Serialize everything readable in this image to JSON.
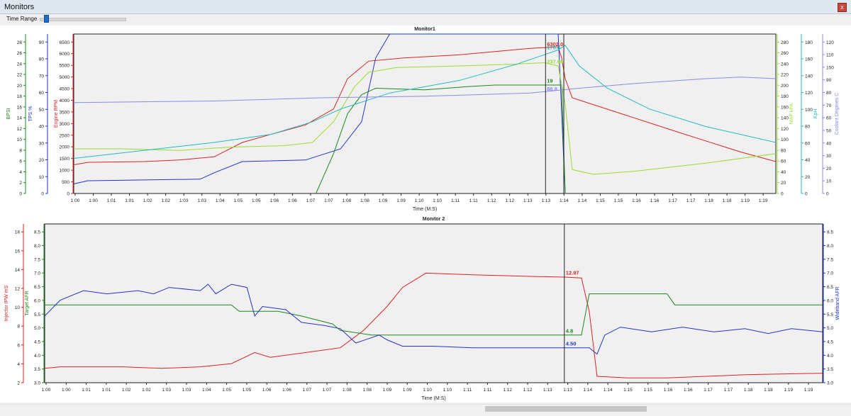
{
  "window": {
    "title": "Monitors",
    "close_label": "x"
  },
  "toolbar": {
    "time_range_label": "Time Range",
    "time_range_position": 0.07
  },
  "scroll": {
    "position": 0.57,
    "visible_fraction": 0.19
  },
  "x_ticks": [
    "1:00",
    "1:00",
    "1:01",
    "1:01",
    "1:02",
    "1:02",
    "1:03",
    "1:03",
    "1:04",
    "1:05",
    "1:05",
    "1:06",
    "1:06",
    "1:07",
    "1:07",
    "1:08",
    "1:08",
    "1:09",
    "1:09",
    "1:10",
    "1:10",
    "1:11",
    "1:11",
    "1:12",
    "1:12",
    "1:13",
    "1:13",
    "1:14",
    "1:14",
    "1:15",
    "1:15",
    "1:16",
    "1:16",
    "1:17",
    "1:17",
    "1:18",
    "1:18",
    "1:19",
    "1:19"
  ],
  "chart_data": [
    {
      "type": "line",
      "title": "Monitor1",
      "xlabel": "Time (M:S)",
      "x_range": [
        0,
        1
      ],
      "cursor_x": 0.672,
      "cursor2_x": 0.698,
      "axes": [
        {
          "id": "bpsi",
          "label": "BPSI",
          "color": "#1a8a1a",
          "ticks": [
            "0",
            "2",
            "4",
            "6",
            "8",
            "10",
            "12",
            "14",
            "16",
            "18",
            "20",
            "22",
            "24",
            "26",
            "28"
          ]
        },
        {
          "id": "tps",
          "label": "TPS %",
          "color": "#2233cc",
          "ticks": [
            "0",
            "10",
            "20",
            "30",
            "40",
            "50",
            "60",
            "70",
            "80",
            "90"
          ]
        },
        {
          "id": "rpm",
          "label": "Engine RPM",
          "color": "#dd2222",
          "ticks": [
            "0",
            "500",
            "1000",
            "1500",
            "2000",
            "2500",
            "3000",
            "3500",
            "4000",
            "4500",
            "5000",
            "5500",
            "6000",
            "6500"
          ]
        },
        {
          "id": "map",
          "label": "MAP kPA",
          "color": "#99dd33",
          "ticks": [
            "0",
            "20",
            "40",
            "60",
            "80",
            "100",
            "120",
            "140",
            "160",
            "180",
            "200",
            "220",
            "240",
            "260",
            "280"
          ]
        },
        {
          "id": "kph",
          "label": "KpH",
          "color": "#22bbbb",
          "ticks": [
            "0",
            "20",
            "40",
            "60",
            "80",
            "100",
            "120",
            "140",
            "160",
            "180"
          ]
        },
        {
          "id": "clt",
          "label": "Coolant Degrees C",
          "color": "#8888ee",
          "ticks": [
            "0",
            "10",
            "20",
            "30",
            "40",
            "50",
            "60",
            "70",
            "80",
            "90",
            "100",
            "110",
            "120"
          ]
        }
      ],
      "series": [
        {
          "name": "Engine RPM",
          "color": "#dd2222",
          "points": [
            [
              0,
              0.18
            ],
            [
              0.02,
              0.195
            ],
            [
              0.1,
              0.2
            ],
            [
              0.15,
              0.21
            ],
            [
              0.2,
              0.23
            ],
            [
              0.24,
              0.32
            ],
            [
              0.28,
              0.37
            ],
            [
              0.33,
              0.43
            ],
            [
              0.37,
              0.53
            ],
            [
              0.39,
              0.72
            ],
            [
              0.42,
              0.83
            ],
            [
              0.47,
              0.85
            ],
            [
              0.55,
              0.87
            ],
            [
              0.6,
              0.89
            ],
            [
              0.65,
              0.91
            ],
            [
              0.69,
              0.92
            ],
            [
              0.695,
              0.85
            ],
            [
              0.7,
              0.72
            ],
            [
              0.71,
              0.6
            ],
            [
              0.78,
              0.5
            ],
            [
              0.85,
              0.4
            ],
            [
              0.9,
              0.33
            ],
            [
              0.95,
              0.26
            ],
            [
              1,
              0.2
            ]
          ]
        },
        {
          "name": "TPS %",
          "color": "#2233cc",
          "points": [
            [
              0,
              0.06
            ],
            [
              0.02,
              0.08
            ],
            [
              0.18,
              0.09
            ],
            [
              0.2,
              0.13
            ],
            [
              0.24,
              0.2
            ],
            [
              0.33,
              0.21
            ],
            [
              0.38,
              0.28
            ],
            [
              0.41,
              0.45
            ],
            [
              0.43,
              0.85
            ],
            [
              0.45,
              1.0
            ],
            [
              0.66,
              1.0
            ],
            [
              0.69,
              1.0
            ],
            [
              0.7,
              0.0
            ]
          ]
        },
        {
          "name": "BPSI",
          "color": "#1a8a1a",
          "points": [
            [
              0.345,
              0.0
            ],
            [
              0.37,
              0.25
            ],
            [
              0.39,
              0.5
            ],
            [
              0.41,
              0.62
            ],
            [
              0.43,
              0.66
            ],
            [
              0.5,
              0.65
            ],
            [
              0.56,
              0.67
            ],
            [
              0.6,
              0.68
            ],
            [
              0.67,
              0.68
            ],
            [
              0.695,
              0.68
            ],
            [
              0.7,
              0.0
            ]
          ]
        },
        {
          "name": "MAP kPA",
          "color": "#99dd33",
          "points": [
            [
              0,
              0.28
            ],
            [
              0.07,
              0.28
            ],
            [
              0.15,
              0.27
            ],
            [
              0.22,
              0.29
            ],
            [
              0.3,
              0.3
            ],
            [
              0.34,
              0.32
            ],
            [
              0.37,
              0.45
            ],
            [
              0.4,
              0.67
            ],
            [
              0.42,
              0.76
            ],
            [
              0.46,
              0.79
            ],
            [
              0.55,
              0.8
            ],
            [
              0.62,
              0.81
            ],
            [
              0.67,
              0.82
            ],
            [
              0.69,
              0.8
            ],
            [
              0.7,
              0.56
            ],
            [
              0.71,
              0.15
            ],
            [
              0.74,
              0.12
            ],
            [
              0.8,
              0.14
            ],
            [
              0.9,
              0.19
            ],
            [
              1,
              0.25
            ]
          ]
        },
        {
          "name": "KpH",
          "color": "#22bbbb",
          "points": [
            [
              0,
              0.22
            ],
            [
              0.1,
              0.27
            ],
            [
              0.2,
              0.32
            ],
            [
              0.28,
              0.37
            ],
            [
              0.34,
              0.45
            ],
            [
              0.38,
              0.53
            ],
            [
              0.45,
              0.63
            ],
            [
              0.55,
              0.71
            ],
            [
              0.63,
              0.81
            ],
            [
              0.67,
              0.87
            ],
            [
              0.69,
              0.9
            ],
            [
              0.7,
              0.93
            ],
            [
              0.72,
              0.8
            ],
            [
              0.76,
              0.66
            ],
            [
              0.82,
              0.53
            ],
            [
              0.9,
              0.42
            ],
            [
              1,
              0.32
            ]
          ]
        },
        {
          "name": "Coolant Degrees C",
          "color": "#8888ee",
          "points": [
            [
              0,
              0.57
            ],
            [
              0.2,
              0.58
            ],
            [
              0.35,
              0.6
            ],
            [
              0.5,
              0.61
            ],
            [
              0.65,
              0.63
            ],
            [
              0.72,
              0.66
            ],
            [
              0.8,
              0.69
            ],
            [
              0.9,
              0.72
            ],
            [
              0.95,
              0.73
            ],
            [
              1,
              0.72
            ]
          ]
        }
      ],
      "cursor_labels": [
        {
          "text": "6302.0",
          "color": "#dd2222",
          "y": 0.925
        },
        {
          "text": "170.6",
          "color": "#22bbbb",
          "y": 0.905
        },
        {
          "text": "237.66",
          "color": "#99dd33",
          "y": 0.815
        },
        {
          "text": "19",
          "color": "#1a8a1a",
          "y": 0.695
        },
        {
          "text": "88.8",
          "color": "#8888ee",
          "y": 0.645
        }
      ]
    },
    {
      "type": "line",
      "title": "Monitor 2",
      "xlabel": "Time (M:S)",
      "x_range": [
        0,
        1
      ],
      "cursor_x": 0.668,
      "axes": [
        {
          "id": "ipw",
          "label": "Injector IPW mS",
          "color": "#dd2222",
          "ticks": [
            "2",
            "4",
            "6",
            "8",
            "10",
            "12",
            "14",
            "16",
            "18"
          ]
        },
        {
          "id": "tafr",
          "label": "Target AFR",
          "color": "#1a8a1a",
          "ticks": [
            "3.0",
            "3.5",
            "4.0",
            "4.5",
            "5.0",
            "5.5",
            "6.0",
            "6.5",
            "7.0",
            "7.5",
            "8.0",
            "8.5"
          ]
        },
        {
          "id": "wafr",
          "label": "Wideband AFR",
          "color": "#2233cc",
          "ticks": [
            "3.0",
            "3.5",
            "4.0",
            "4.5",
            "5.0",
            "5.5",
            "6.0",
            "6.5",
            "7.0",
            "7.5",
            "8.0",
            "8.5"
          ]
        }
      ],
      "series": [
        {
          "name": "Injector IPW mS",
          "color": "#dd2222",
          "points": [
            [
              0,
              0.09
            ],
            [
              0.02,
              0.1
            ],
            [
              0.1,
              0.1
            ],
            [
              0.15,
              0.09
            ],
            [
              0.2,
              0.1
            ],
            [
              0.24,
              0.12
            ],
            [
              0.27,
              0.19
            ],
            [
              0.29,
              0.16
            ],
            [
              0.35,
              0.2
            ],
            [
              0.38,
              0.22
            ],
            [
              0.41,
              0.33
            ],
            [
              0.44,
              0.48
            ],
            [
              0.46,
              0.6
            ],
            [
              0.49,
              0.69
            ],
            [
              0.55,
              0.68
            ],
            [
              0.62,
              0.67
            ],
            [
              0.668,
              0.665
            ],
            [
              0.69,
              0.66
            ],
            [
              0.7,
              0.45
            ],
            [
              0.71,
              0.04
            ],
            [
              0.75,
              0.03
            ],
            [
              0.8,
              0.03
            ],
            [
              0.9,
              0.05
            ],
            [
              1,
              0.06
            ]
          ]
        },
        {
          "name": "Target AFR",
          "color": "#1a8a1a",
          "points": [
            [
              0,
              0.49
            ],
            [
              0.1,
              0.49
            ],
            [
              0.2,
              0.49
            ],
            [
              0.24,
              0.49
            ],
            [
              0.25,
              0.45
            ],
            [
              0.3,
              0.45
            ],
            [
              0.33,
              0.42
            ],
            [
              0.37,
              0.37
            ],
            [
              0.38,
              0.33
            ],
            [
              0.42,
              0.3
            ],
            [
              0.44,
              0.3
            ],
            [
              0.6,
              0.3
            ],
            [
              0.668,
              0.3
            ],
            [
              0.69,
              0.3
            ],
            [
              0.7,
              0.56
            ],
            [
              0.8,
              0.56
            ],
            [
              0.81,
              0.49
            ],
            [
              0.9,
              0.49
            ],
            [
              1,
              0.49
            ]
          ]
        },
        {
          "name": "Wideband AFR",
          "color": "#2233cc",
          "points": [
            [
              0,
              0.42
            ],
            [
              0.02,
              0.52
            ],
            [
              0.05,
              0.58
            ],
            [
              0.08,
              0.56
            ],
            [
              0.12,
              0.58
            ],
            [
              0.14,
              0.56
            ],
            [
              0.16,
              0.6
            ],
            [
              0.2,
              0.58
            ],
            [
              0.21,
              0.62
            ],
            [
              0.22,
              0.56
            ],
            [
              0.24,
              0.62
            ],
            [
              0.26,
              0.6
            ],
            [
              0.27,
              0.42
            ],
            [
              0.28,
              0.48
            ],
            [
              0.31,
              0.46
            ],
            [
              0.33,
              0.38
            ],
            [
              0.36,
              0.36
            ],
            [
              0.38,
              0.34
            ],
            [
              0.4,
              0.25
            ],
            [
              0.43,
              0.3
            ],
            [
              0.44,
              0.27
            ],
            [
              0.46,
              0.23
            ],
            [
              0.5,
              0.23
            ],
            [
              0.55,
              0.22
            ],
            [
              0.6,
              0.22
            ],
            [
              0.668,
              0.22
            ],
            [
              0.7,
              0.22
            ],
            [
              0.71,
              0.18
            ],
            [
              0.72,
              0.3
            ],
            [
              0.74,
              0.35
            ],
            [
              0.78,
              0.32
            ],
            [
              0.82,
              0.35
            ],
            [
              0.86,
              0.32
            ],
            [
              0.9,
              0.34
            ],
            [
              0.93,
              0.31
            ],
            [
              0.96,
              0.34
            ],
            [
              1,
              0.32
            ]
          ]
        }
      ],
      "cursor_labels": [
        {
          "text": "12.97",
          "color": "#dd2222",
          "y": 0.68
        },
        {
          "text": "4.8",
          "color": "#1a8a1a",
          "y": 0.315
        },
        {
          "text": "4.50",
          "color": "#2233cc",
          "y": 0.235
        }
      ]
    }
  ]
}
